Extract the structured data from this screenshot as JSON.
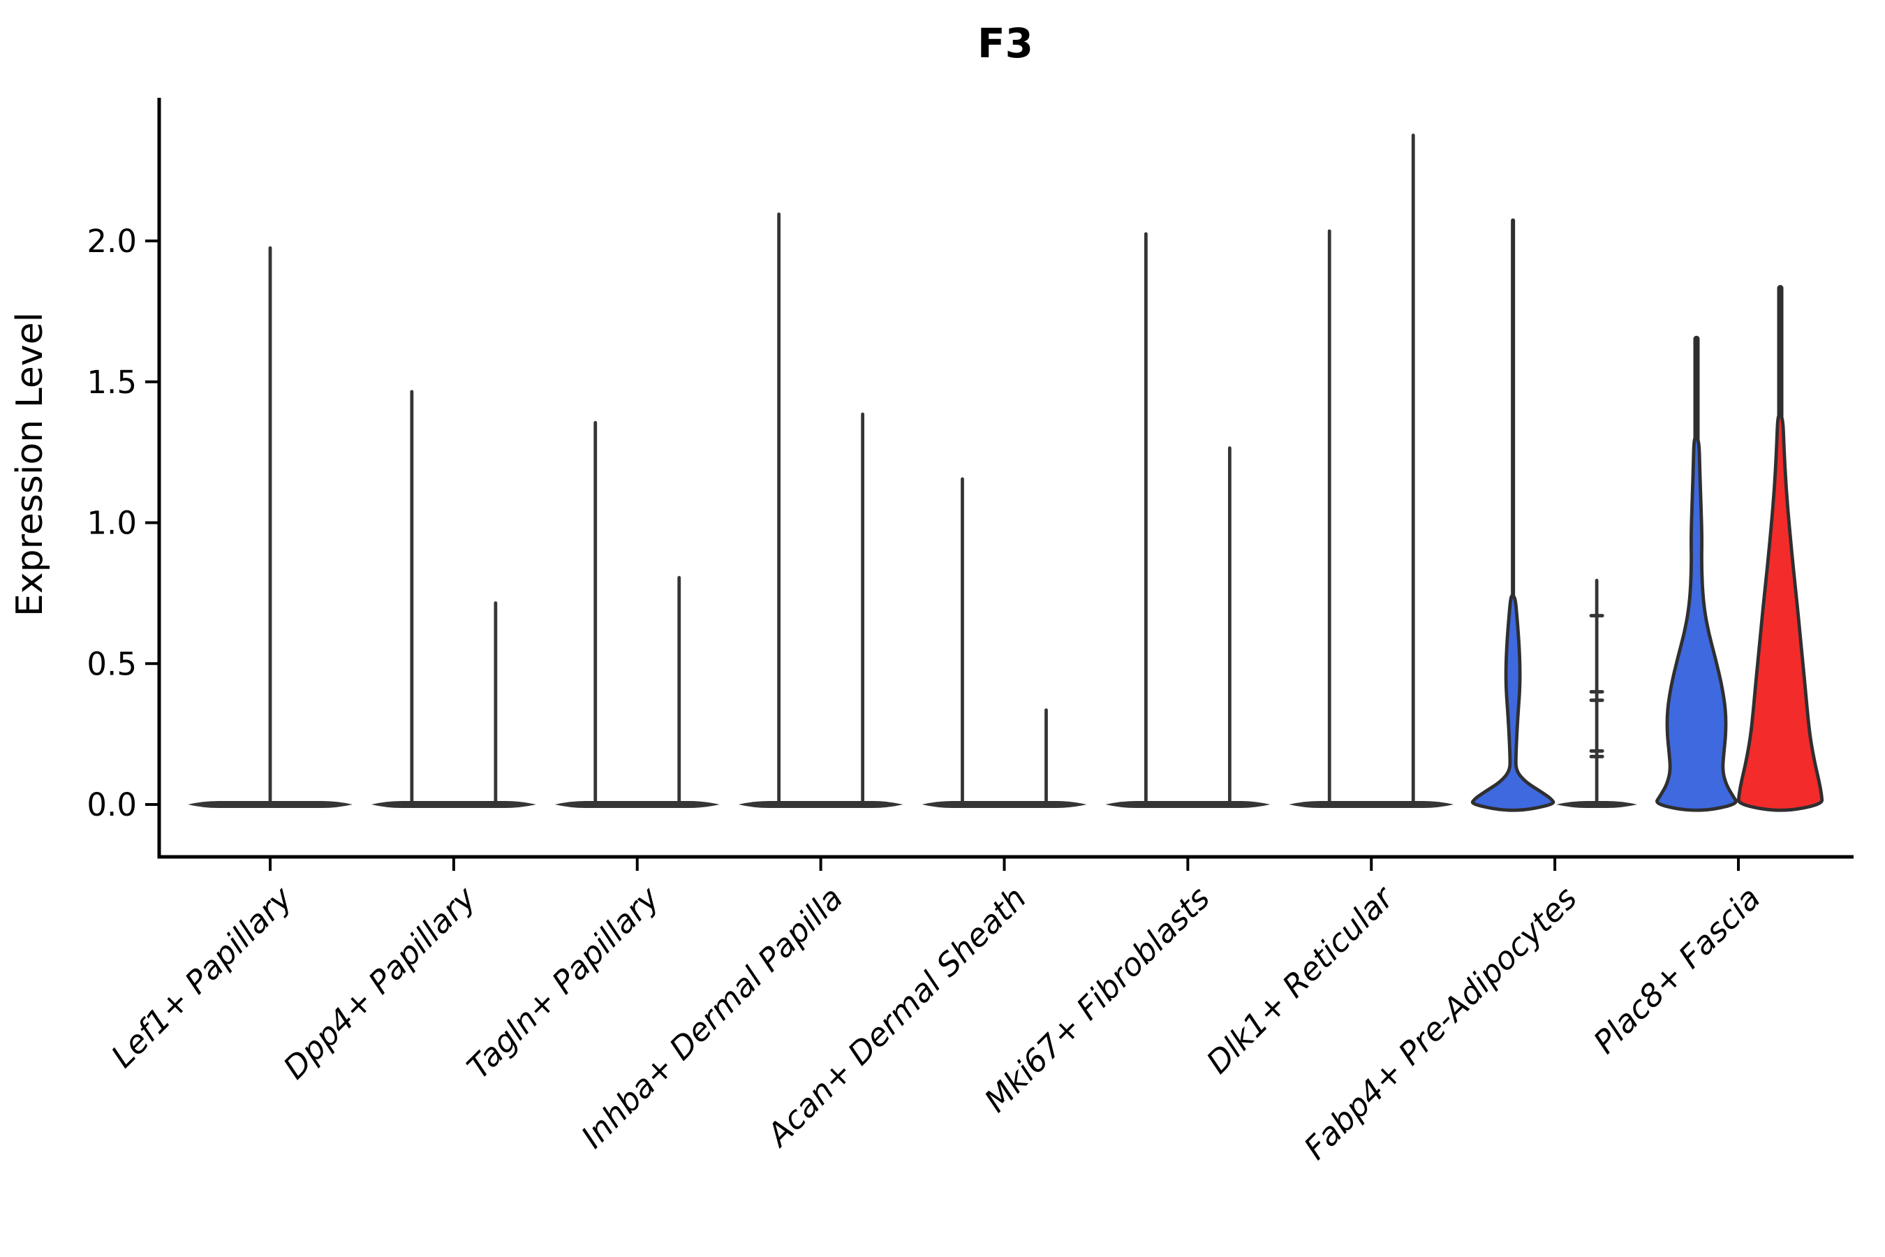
{
  "chart_data": {
    "type": "violin",
    "title": "F3",
    "xlabel": "",
    "ylabel": "Expression Level",
    "ylim": [
      0,
      2.5
    ],
    "grid": false,
    "legend": "none",
    "yticks": [
      {
        "label": "0.0",
        "value": 0.0
      },
      {
        "label": "0.5",
        "value": 0.5
      },
      {
        "label": "1.0",
        "value": 1.0
      },
      {
        "label": "1.5",
        "value": 1.5
      },
      {
        "label": "2.0",
        "value": 2.0
      }
    ],
    "colors": {
      "outline": "#2f2f2f",
      "base": "#353535",
      "blue_fill": "#3e69df",
      "red_fill": "#f32b2b",
      "axis": "#000000"
    },
    "categories": [
      {
        "label": "Lef1+ Papillary",
        "violins": [
          {
            "pos": "full",
            "kind": "spike",
            "max": 1.98
          }
        ]
      },
      {
        "label": "Dpp4+ Papillary",
        "violins": [
          {
            "pos": "left",
            "kind": "spike",
            "max": 1.47
          },
          {
            "pos": "right",
            "kind": "spike",
            "max": 0.72
          }
        ]
      },
      {
        "label": "Tagln+ Papillary",
        "violins": [
          {
            "pos": "left",
            "kind": "spike",
            "max": 1.36
          },
          {
            "pos": "right",
            "kind": "spike",
            "max": 0.81
          }
        ]
      },
      {
        "label": "Inhba+ Dermal Papilla",
        "violins": [
          {
            "pos": "left",
            "kind": "spike",
            "max": 2.1
          },
          {
            "pos": "right",
            "kind": "spike",
            "max": 1.39
          }
        ]
      },
      {
        "label": "Acan+ Dermal Sheath",
        "violins": [
          {
            "pos": "left",
            "kind": "spike",
            "max": 1.16
          },
          {
            "pos": "right",
            "kind": "spike",
            "max": 0.34
          }
        ]
      },
      {
        "label": "Mki67+ Fibroblasts",
        "violins": [
          {
            "pos": "left",
            "kind": "spike",
            "max": 2.03
          },
          {
            "pos": "right",
            "kind": "spike",
            "max": 1.27
          }
        ]
      },
      {
        "label": "Dlk1+ Reticular",
        "violins": [
          {
            "pos": "left",
            "kind": "spike",
            "max": 2.04
          },
          {
            "pos": "right",
            "kind": "spike",
            "max": 2.38
          }
        ]
      },
      {
        "label": "Fabp4+ Pre-Adipocytes",
        "violins": [
          {
            "pos": "left",
            "kind": "violin",
            "fill": "#3e69df",
            "max": 2.08,
            "spike_from": 0.74,
            "profile": [
              [
                0.74,
                0.05
              ],
              [
                0.66,
                0.1
              ],
              [
                0.56,
                0.15
              ],
              [
                0.47,
                0.17
              ],
              [
                0.4,
                0.16
              ],
              [
                0.32,
                0.12
              ],
              [
                0.24,
                0.09
              ],
              [
                0.17,
                0.07
              ],
              [
                0.12,
                0.07
              ],
              [
                0.08,
                0.3
              ],
              [
                0.05,
                0.62
              ],
              [
                0.02,
                0.92
              ],
              [
                0.0,
                1.0
              ]
            ]
          },
          {
            "pos": "right",
            "kind": "spike",
            "max": 0.8,
            "marks": [
              0.67,
              0.4,
              0.37,
              0.19,
              0.17
            ]
          }
        ]
      },
      {
        "label": "Plac8+ Fascia",
        "violins": [
          {
            "pos": "left",
            "kind": "violin",
            "fill": "#3e69df",
            "max": 1.66,
            "spike_from": 1.3,
            "profile": [
              [
                1.3,
                0.06
              ],
              [
                1.18,
                0.08
              ],
              [
                1.05,
                0.11
              ],
              [
                0.95,
                0.13
              ],
              [
                0.84,
                0.12
              ],
              [
                0.72,
                0.16
              ],
              [
                0.62,
                0.27
              ],
              [
                0.52,
                0.45
              ],
              [
                0.42,
                0.61
              ],
              [
                0.33,
                0.7
              ],
              [
                0.25,
                0.7
              ],
              [
                0.18,
                0.65
              ],
              [
                0.12,
                0.62
              ],
              [
                0.07,
                0.71
              ],
              [
                0.03,
                0.87
              ],
              [
                0.0,
                1.0
              ]
            ]
          },
          {
            "pos": "right",
            "kind": "violin",
            "fill": "#f32b2b",
            "max": 1.84,
            "spike_from": 1.38,
            "profile": [
              [
                1.38,
                0.06
              ],
              [
                1.26,
                0.09
              ],
              [
                1.12,
                0.14
              ],
              [
                0.98,
                0.22
              ],
              [
                0.84,
                0.31
              ],
              [
                0.7,
                0.41
              ],
              [
                0.56,
                0.5
              ],
              [
                0.44,
                0.58
              ],
              [
                0.34,
                0.64
              ],
              [
                0.24,
                0.71
              ],
              [
                0.15,
                0.82
              ],
              [
                0.08,
                0.93
              ],
              [
                0.03,
                0.99
              ],
              [
                0.0,
                1.0
              ]
            ]
          }
        ]
      }
    ]
  }
}
